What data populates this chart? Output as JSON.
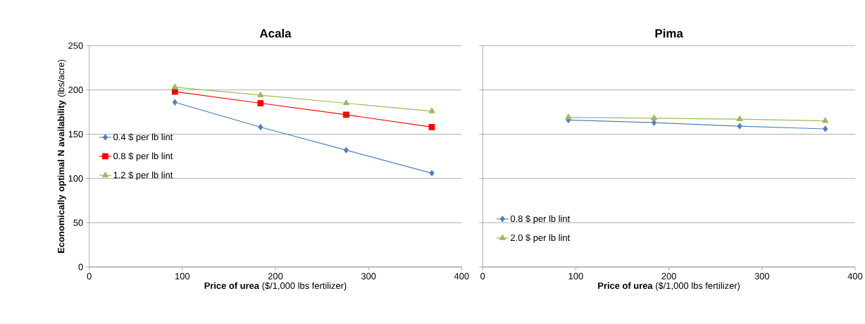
{
  "chart_data": [
    {
      "type": "line",
      "title": "Acala",
      "xlabel": "**Price of urea** ($/1,000 lbs fertilizer)",
      "ylabel": "**Economically optimal N availability** (lbs/acre)",
      "x": [
        92,
        184,
        276,
        368
      ],
      "xlim": [
        0,
        400
      ],
      "xticks": [
        0,
        100,
        200,
        300,
        400
      ],
      "ylim": [
        0,
        250
      ],
      "yticks": [
        0,
        50,
        100,
        150,
        200,
        250
      ],
      "grid": "y",
      "legend": "left",
      "series": [
        {
          "name": "0.4 $ per lb lint",
          "color": "#4f81bd",
          "marker": "diamond",
          "values": [
            186,
            158,
            132,
            106
          ]
        },
        {
          "name": "0.8 $ per lb lint",
          "color": "#ff0000",
          "marker": "square",
          "values": [
            198,
            185,
            172,
            158
          ]
        },
        {
          "name": "1.2 $ per lb lint",
          "color": "#9bbb59",
          "marker": "triangle",
          "values": [
            203,
            194,
            185,
            176
          ]
        }
      ]
    },
    {
      "type": "line",
      "title": "Pima",
      "xlabel": "**Price of urea** ($/1,000 lbs fertilizer)",
      "x": [
        92,
        184,
        276,
        368
      ],
      "xlim": [
        0,
        400
      ],
      "xticks": [
        0,
        100,
        200,
        300,
        400
      ],
      "ylim": [
        0,
        250
      ],
      "yticks": [
        0,
        50,
        100,
        150,
        200,
        250
      ],
      "grid": "y",
      "legend": "bottom left",
      "tick_labels": "x",
      "series": [
        {
          "name": "0.8 $ per lb lint",
          "color": "#4f81bd",
          "marker": "diamond",
          "values": [
            166,
            163,
            159,
            156
          ]
        },
        {
          "name": "2.0 $ per lb lint",
          "color": "#9bbb59",
          "marker": "triangle",
          "values": [
            169,
            168,
            167,
            165
          ]
        }
      ]
    }
  ]
}
